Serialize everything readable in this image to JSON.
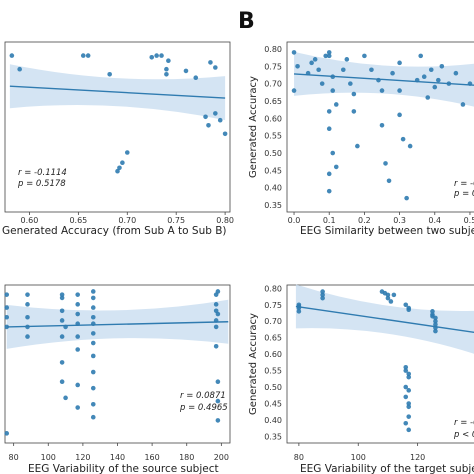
{
  "figure": {
    "panel_letter": "B"
  },
  "chart_data": [
    {
      "type": "scatter",
      "xlabel": "Generated Accuracy (from Sub A to Sub B)",
      "ylabel": "",
      "x_ticks": [
        "0.60",
        "0.65",
        "0.70",
        "0.75",
        "0.80"
      ],
      "y_ticks": [],
      "stats": [
        "r = -0.1114",
        "p = 0.5178"
      ],
      "xlim": [
        0.575,
        0.805
      ],
      "ylim": [
        0.33,
        0.83
      ],
      "regression": {
        "x0": 0.58,
        "y0": 0.7,
        "x1": 0.8,
        "y1": 0.665
      },
      "points": [
        [
          0.582,
          0.79
        ],
        [
          0.59,
          0.75
        ],
        [
          0.655,
          0.79
        ],
        [
          0.66,
          0.79
        ],
        [
          0.682,
          0.735
        ],
        [
          0.7,
          0.505
        ],
        [
          0.695,
          0.475
        ],
        [
          0.692,
          0.46
        ],
        [
          0.69,
          0.45
        ],
        [
          0.725,
          0.785
        ],
        [
          0.73,
          0.79
        ],
        [
          0.735,
          0.79
        ],
        [
          0.74,
          0.75
        ],
        [
          0.74,
          0.735
        ],
        [
          0.742,
          0.775
        ],
        [
          0.76,
          0.745
        ],
        [
          0.77,
          0.725
        ],
        [
          0.785,
          0.77
        ],
        [
          0.79,
          0.755
        ],
        [
          0.78,
          0.61
        ],
        [
          0.783,
          0.585
        ],
        [
          0.79,
          0.62
        ],
        [
          0.795,
          0.6
        ],
        [
          0.8,
          0.56
        ]
      ],
      "color": "#2f7bb0"
    },
    {
      "type": "scatter",
      "xlabel": "EEG Similarity between two subje",
      "ylabel": "Generated Accuracy",
      "x_ticks": [
        "0.0",
        "0.1",
        "0.2",
        "0.3",
        "0.4",
        "0.5"
      ],
      "y_ticks": [
        "0.35",
        "0.40",
        "0.45",
        "0.50",
        "0.55",
        "0.60",
        "0.65",
        "0.70",
        "0.75",
        "0.80"
      ],
      "stats": [
        "r = -0.",
        "p = 0"
      ],
      "xlim": [
        -0.02,
        0.52
      ],
      "ylim": [
        0.33,
        0.82
      ],
      "regression": {
        "x0": 0.0,
        "y0": 0.728,
        "x1": 0.52,
        "y1": 0.695
      },
      "points": [
        [
          0.0,
          0.79
        ],
        [
          0.01,
          0.75
        ],
        [
          0.0,
          0.68
        ],
        [
          0.04,
          0.73
        ],
        [
          0.05,
          0.76
        ],
        [
          0.06,
          0.77
        ],
        [
          0.07,
          0.74
        ],
        [
          0.08,
          0.7
        ],
        [
          0.09,
          0.78
        ],
        [
          0.1,
          0.79
        ],
        [
          0.1,
          0.78
        ],
        [
          0.11,
          0.72
        ],
        [
          0.11,
          0.68
        ],
        [
          0.12,
          0.64
        ],
        [
          0.1,
          0.62
        ],
        [
          0.1,
          0.57
        ],
        [
          0.11,
          0.5
        ],
        [
          0.1,
          0.44
        ],
        [
          0.1,
          0.39
        ],
        [
          0.12,
          0.46
        ],
        [
          0.14,
          0.74
        ],
        [
          0.15,
          0.77
        ],
        [
          0.16,
          0.7
        ],
        [
          0.17,
          0.67
        ],
        [
          0.17,
          0.62
        ],
        [
          0.18,
          0.52
        ],
        [
          0.2,
          0.78
        ],
        [
          0.22,
          0.74
        ],
        [
          0.24,
          0.71
        ],
        [
          0.25,
          0.68
        ],
        [
          0.25,
          0.58
        ],
        [
          0.26,
          0.47
        ],
        [
          0.27,
          0.42
        ],
        [
          0.28,
          0.73
        ],
        [
          0.3,
          0.76
        ],
        [
          0.3,
          0.68
        ],
        [
          0.3,
          0.61
        ],
        [
          0.31,
          0.54
        ],
        [
          0.32,
          0.37
        ],
        [
          0.33,
          0.52
        ],
        [
          0.35,
          0.71
        ],
        [
          0.36,
          0.78
        ],
        [
          0.37,
          0.72
        ],
        [
          0.38,
          0.66
        ],
        [
          0.39,
          0.74
        ],
        [
          0.4,
          0.69
        ],
        [
          0.41,
          0.71
        ],
        [
          0.42,
          0.75
        ],
        [
          0.44,
          0.7
        ],
        [
          0.46,
          0.73
        ],
        [
          0.48,
          0.64
        ],
        [
          0.5,
          0.7
        ]
      ],
      "color": "#2f7bb0"
    },
    {
      "type": "scatter",
      "xlabel": "EEG Variability of the source subject",
      "ylabel": "",
      "x_ticks": [
        "80",
        "100",
        "120",
        "140",
        "160",
        "180",
        "200"
      ],
      "y_ticks": [],
      "stats": [
        "r = 0.0871",
        "p = 0.4965"
      ],
      "xlim": [
        75,
        205
      ],
      "ylim": [
        0.33,
        0.82
      ],
      "regression": {
        "x0": 76,
        "y0": 0.69,
        "x1": 204,
        "y1": 0.706
      },
      "points": [
        [
          76,
          0.79
        ],
        [
          76,
          0.75
        ],
        [
          76,
          0.72
        ],
        [
          76,
          0.69
        ],
        [
          76,
          0.36
        ],
        [
          88,
          0.79
        ],
        [
          88,
          0.76
        ],
        [
          88,
          0.72
        ],
        [
          88,
          0.69
        ],
        [
          88,
          0.66
        ],
        [
          108,
          0.79
        ],
        [
          108,
          0.78
        ],
        [
          108,
          0.74
        ],
        [
          108,
          0.71
        ],
        [
          108,
          0.66
        ],
        [
          108,
          0.58
        ],
        [
          108,
          0.52
        ],
        [
          110,
          0.69
        ],
        [
          110,
          0.47
        ],
        [
          117,
          0.79
        ],
        [
          117,
          0.76
        ],
        [
          117,
          0.73
        ],
        [
          117,
          0.7
        ],
        [
          117,
          0.66
        ],
        [
          117,
          0.62
        ],
        [
          117,
          0.51
        ],
        [
          117,
          0.44
        ],
        [
          126,
          0.8
        ],
        [
          126,
          0.78
        ],
        [
          126,
          0.75
        ],
        [
          126,
          0.72
        ],
        [
          126,
          0.7
        ],
        [
          126,
          0.67
        ],
        [
          126,
          0.64
        ],
        [
          126,
          0.6
        ],
        [
          126,
          0.55
        ],
        [
          126,
          0.5
        ],
        [
          126,
          0.45
        ],
        [
          126,
          0.41
        ],
        [
          197,
          0.79
        ],
        [
          197,
          0.76
        ],
        [
          197,
          0.74
        ],
        [
          197,
          0.71
        ],
        [
          197,
          0.69
        ],
        [
          197,
          0.63
        ],
        [
          198,
          0.8
        ],
        [
          198,
          0.73
        ],
        [
          198,
          0.52
        ],
        [
          198,
          0.46
        ],
        [
          198,
          0.4
        ]
      ],
      "color": "#2f7bb0"
    },
    {
      "type": "scatter",
      "xlabel": "EEG Variability of the target subjec",
      "ylabel": "Generated Accuracy",
      "x_ticks": [
        "80",
        "100",
        "120"
      ],
      "y_ticks": [
        "0.35",
        "0.40",
        "0.45",
        "0.50",
        "0.55",
        "0.60",
        "0.65",
        "0.70",
        "0.75",
        "0.80"
      ],
      "stats": [
        "r = -0.",
        "p < 0"
      ],
      "xlim": [
        76,
        140
      ],
      "ylim": [
        0.33,
        0.81
      ],
      "regression": {
        "x0": 79,
        "y0": 0.745,
        "x1": 140,
        "y1": 0.665
      },
      "points": [
        [
          80,
          0.75
        ],
        [
          80,
          0.745
        ],
        [
          80,
          0.74
        ],
        [
          80,
          0.73
        ],
        [
          88,
          0.79
        ],
        [
          88,
          0.78
        ],
        [
          88,
          0.77
        ],
        [
          108,
          0.79
        ],
        [
          109,
          0.785
        ],
        [
          110,
          0.78
        ],
        [
          110,
          0.77
        ],
        [
          111,
          0.76
        ],
        [
          112,
          0.78
        ],
        [
          116,
          0.75
        ],
        [
          117,
          0.74
        ],
        [
          117,
          0.735
        ],
        [
          116,
          0.56
        ],
        [
          116,
          0.55
        ],
        [
          117,
          0.54
        ],
        [
          117,
          0.53
        ],
        [
          116,
          0.5
        ],
        [
          117,
          0.49
        ],
        [
          116,
          0.47
        ],
        [
          117,
          0.45
        ],
        [
          117,
          0.44
        ],
        [
          117,
          0.41
        ],
        [
          116,
          0.39
        ],
        [
          117,
          0.37
        ],
        [
          125,
          0.73
        ],
        [
          125,
          0.72
        ],
        [
          125,
          0.715
        ],
        [
          126,
          0.71
        ],
        [
          126,
          0.7
        ],
        [
          126,
          0.69
        ],
        [
          126,
          0.68
        ],
        [
          126,
          0.67
        ]
      ],
      "color": "#2f7bb0"
    }
  ]
}
